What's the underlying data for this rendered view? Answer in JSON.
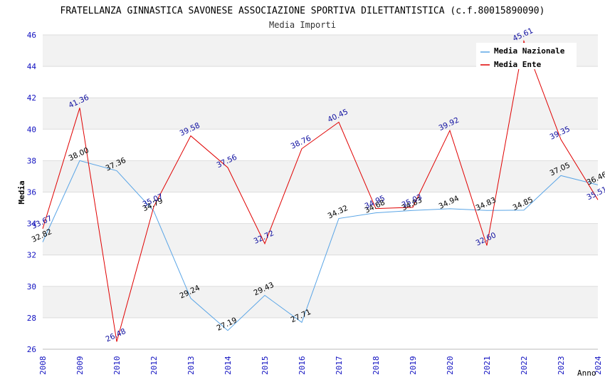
{
  "chart_data": {
    "type": "line",
    "title": "FRATELLANZA GINNASTICA SAVONESE ASSOCIAZIONE SPORTIVA DILETTANTISTICA (c.f.80015890090)",
    "subtitle": "Media Importi",
    "xlabel": "Anno",
    "ylabel": "Media",
    "ylim": [
      26,
      46
    ],
    "yticks": [
      "26",
      "28",
      "30",
      "32",
      "34",
      "36",
      "38",
      "40",
      "42",
      "44",
      "46"
    ],
    "categories": [
      "2008",
      "2009",
      "2010",
      "2012",
      "2013",
      "2014",
      "2015",
      "2016",
      "2017",
      "2018",
      "2019",
      "2020",
      "2021",
      "2022",
      "2023",
      "2024"
    ],
    "legend_position": "top-right",
    "series": [
      {
        "name": "Media Nazionale",
        "color": "#5aa5e6",
        "label_color": "#000000",
        "values": [
          32.82,
          38.0,
          37.36,
          34.79,
          29.24,
          27.19,
          29.43,
          27.71,
          34.32,
          34.68,
          34.83,
          34.94,
          34.83,
          34.85,
          37.05,
          36.46
        ],
        "labels": [
          "32.82",
          "38.00",
          "37.36",
          "34.79",
          "29.24",
          "27.19",
          "29.43",
          "27.71",
          "34.32",
          "34.68",
          "34.83",
          "34.94",
          "34.83",
          "34.85",
          "37.05",
          "36.46"
        ]
      },
      {
        "name": "Media Ente",
        "color": "#e00000",
        "label_color": "#1010a0",
        "values": [
          33.67,
          41.36,
          26.48,
          35.07,
          39.58,
          37.56,
          32.72,
          38.76,
          40.45,
          34.95,
          35.03,
          39.92,
          32.6,
          45.61,
          39.35,
          35.51
        ],
        "labels": [
          "33.67",
          "41.36",
          "26.48",
          "35.07",
          "39.58",
          "37.56",
          "32.72",
          "38.76",
          "40.45",
          "34.95",
          "35.03",
          "39.92",
          "32.60",
          "45.61",
          "39.35",
          "35.51"
        ]
      }
    ]
  }
}
